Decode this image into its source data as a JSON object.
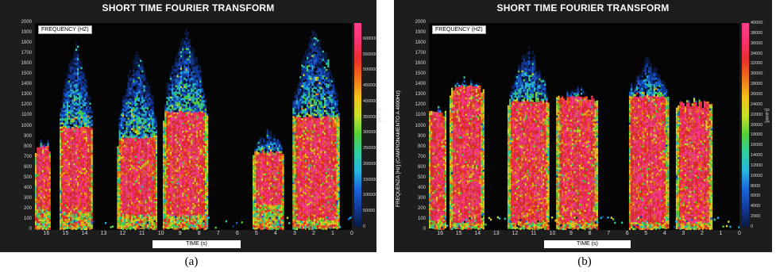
{
  "chart_data": [
    {
      "type": "heatmap",
      "panel": "a",
      "title": "SHORT TIME FOURIER TRANSFORM",
      "ylabel": "FREQUENCY (HZ)",
      "xlabel": "TIME (s)",
      "vertical_label": "",
      "ylim": [
        0,
        2000
      ],
      "xlim": [
        16.6,
        0
      ],
      "y_ticks": [
        0,
        100,
        200,
        300,
        400,
        500,
        600,
        700,
        800,
        900,
        1000,
        1100,
        1200,
        1300,
        1400,
        1500,
        1600,
        1700,
        1800,
        1900,
        2000
      ],
      "x_ticks": [
        16,
        15,
        14,
        13,
        12,
        11,
        10,
        9,
        8,
        7,
        6,
        5,
        4,
        3,
        2,
        1,
        0
      ],
      "colorbar": {
        "unit": "[Level]",
        "range": [
          0,
          650000
        ],
        "ticks": [
          0,
          50000,
          100000,
          150000,
          200000,
          250000,
          300000,
          350000,
          400000,
          450000,
          500000,
          550000,
          600000
        ]
      },
      "bursts": [
        {
          "t_start": 16.6,
          "t_end": 15.8,
          "peak_hz": 950,
          "core_hz": [
            200,
            820
          ]
        },
        {
          "t_start": 15.4,
          "t_end": 13.6,
          "peak_hz": 1850,
          "core_hz": [
            180,
            1000
          ]
        },
        {
          "t_start": 12.3,
          "t_end": 10.2,
          "peak_hz": 1800,
          "core_hz": [
            150,
            900
          ]
        },
        {
          "t_start": 9.9,
          "t_end": 7.6,
          "peak_hz": 2000,
          "core_hz": [
            150,
            1150
          ]
        },
        {
          "t_start": 5.2,
          "t_end": 3.6,
          "peak_hz": 1000,
          "core_hz": [
            250,
            760
          ]
        },
        {
          "t_start": 3.2,
          "t_end": 0.7,
          "peak_hz": 2000,
          "core_hz": [
            100,
            1100
          ]
        }
      ]
    },
    {
      "type": "heatmap",
      "panel": "b",
      "title": "SHORT TIME FOURIER TRANSFORM",
      "ylabel": "FREQUENCY (HZ)",
      "xlabel": "TIME (s)",
      "vertical_label": "FREQUENZA [Hz] (CAMPIONAMENTO A 4000Hz)",
      "ylim": [
        0,
        2000
      ],
      "xlim": [
        16.6,
        0
      ],
      "y_ticks": [
        0,
        100,
        200,
        300,
        400,
        500,
        600,
        700,
        800,
        900,
        1000,
        1100,
        1200,
        1300,
        1400,
        1500,
        1600,
        1700,
        1800,
        1900,
        2000
      ],
      "x_ticks": [
        16,
        15,
        14,
        13,
        12,
        11,
        10,
        9,
        8,
        7,
        6,
        5,
        4,
        3,
        2,
        1,
        0
      ],
      "colorbar": {
        "unit": "[Level]",
        "range": [
          0,
          40000
        ],
        "ticks": [
          0,
          2000,
          4000,
          6000,
          8000,
          10000,
          12000,
          14000,
          16000,
          18000,
          20000,
          22000,
          24000,
          26000,
          28000,
          30000,
          32000,
          34000,
          36000,
          38000,
          40000
        ]
      },
      "bursts": [
        {
          "t_start": 16.6,
          "t_end": 15.7,
          "peak_hz": 1250,
          "core_hz": [
            100,
            1150
          ]
        },
        {
          "t_start": 15.5,
          "t_end": 13.7,
          "peak_hz": 1500,
          "core_hz": [
            80,
            1400
          ]
        },
        {
          "t_start": 12.4,
          "t_end": 10.2,
          "peak_hz": 1800,
          "core_hz": [
            80,
            1250
          ]
        },
        {
          "t_start": 9.8,
          "t_end": 7.6,
          "peak_hz": 1400,
          "core_hz": [
            80,
            1300
          ]
        },
        {
          "t_start": 6.0,
          "t_end": 3.8,
          "peak_hz": 1700,
          "core_hz": [
            80,
            1300
          ]
        },
        {
          "t_start": 3.4,
          "t_end": 1.5,
          "peak_hz": 1300,
          "core_hz": [
            80,
            1250
          ]
        }
      ]
    }
  ],
  "captions": [
    "(a)",
    "(b)"
  ]
}
